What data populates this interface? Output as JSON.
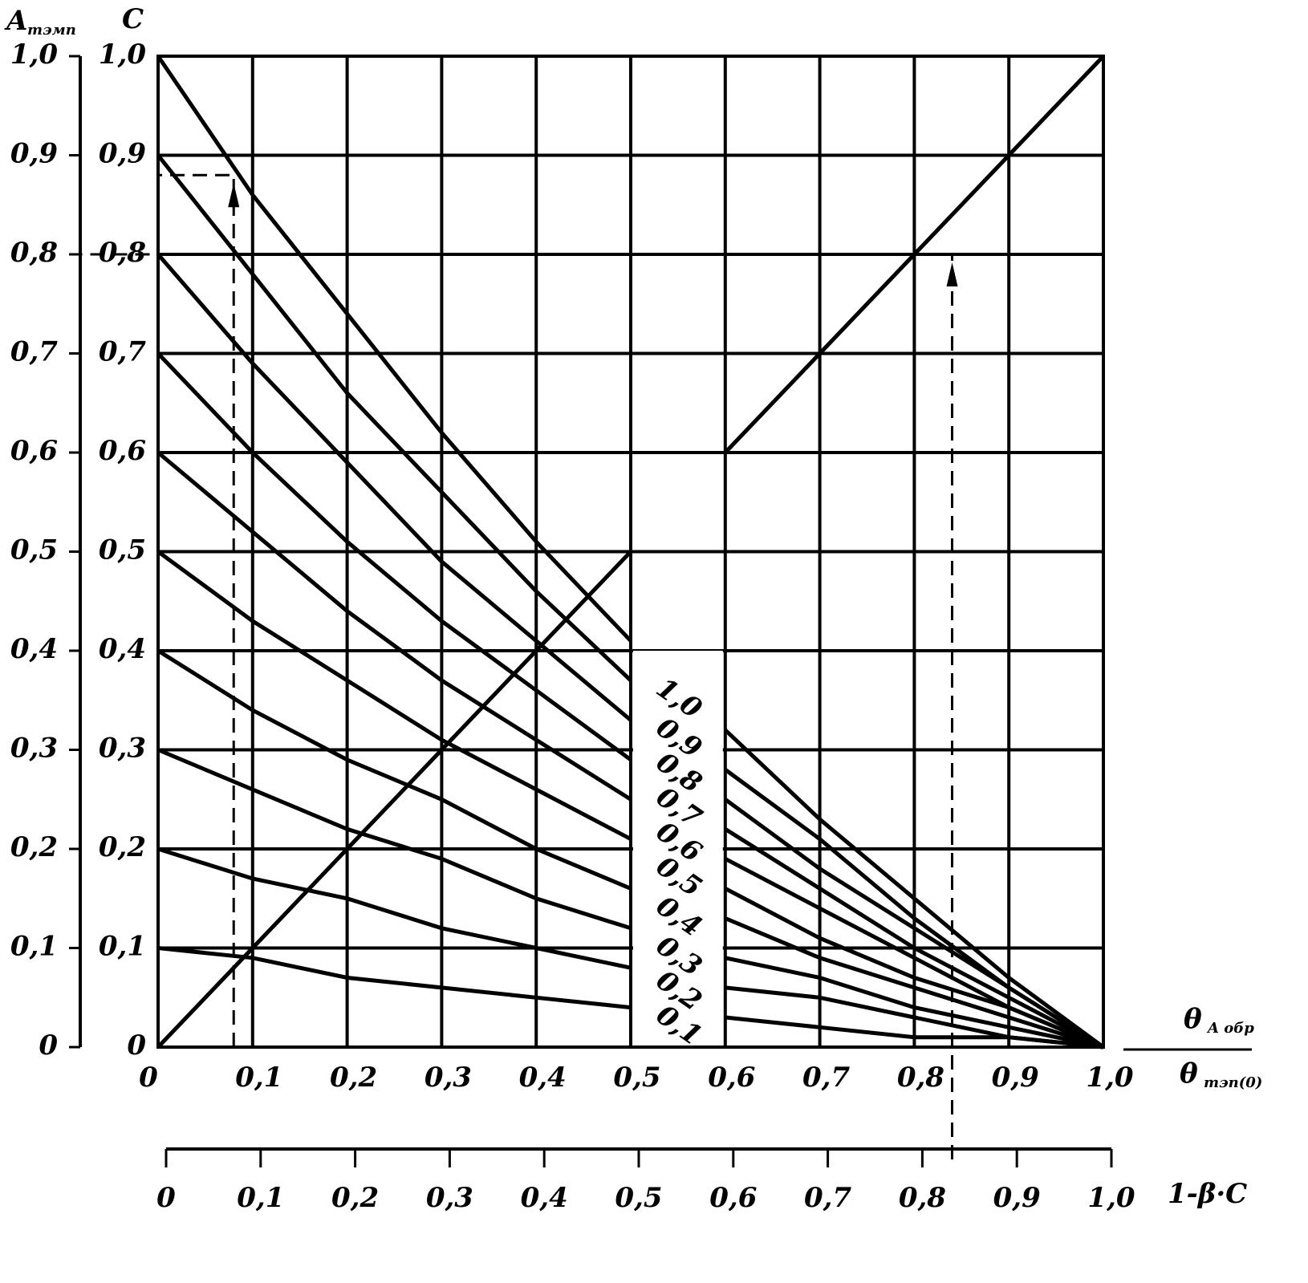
{
  "chart_data": {
    "type": "line",
    "y_label": "A",
    "y_label_sub": "тэмп",
    "y2_label": "C",
    "x_label_top": "θ",
    "x_label_top_sub": "A обр",
    "x_label_bottom": "θ",
    "x_label_bottom_sub": "тэп(0)",
    "x2_label": "1-β·C",
    "xlim": [
      0,
      1
    ],
    "ylim": [
      0,
      1
    ],
    "xticks": [
      0,
      {
        "value": 0.1,
        "label": "0,1"
      },
      {
        "value": 0.2,
        "label": "0,2"
      },
      {
        "value": 0.3,
        "label": "0,3"
      },
      {
        "value": 0.4,
        "label": "0,4"
      },
      {
        "value": 0.5,
        "label": "0,5"
      },
      {
        "value": 0.6,
        "label": "0,6"
      },
      {
        "value": 0.7,
        "label": "0,7"
      },
      {
        "value": 0.8,
        "label": "0,8"
      },
      {
        "value": 0.9,
        "label": "0,9"
      },
      {
        "value": 1,
        "label": "1,0"
      }
    ],
    "yticks": [
      0,
      {
        "value": 0.1,
        "label": "0,1"
      },
      {
        "value": 0.2,
        "label": "0,2"
      },
      {
        "value": 0.3,
        "label": "0,3"
      },
      {
        "value": 0.4,
        "label": "0,4"
      },
      {
        "value": 0.5,
        "label": "0,5"
      },
      {
        "value": 0.6,
        "label": "0,6"
      },
      {
        "value": 0.7,
        "label": "0,7"
      },
      {
        "value": 0.8,
        "label": "0,8"
      },
      {
        "value": 0.9,
        "label": "0,9"
      },
      {
        "value": 1,
        "label": "1,0"
      }
    ],
    "grid": true,
    "x": [
      0,
      0.1,
      0.2,
      0.3,
      0.4,
      0.5,
      0.55,
      0.6,
      0.7,
      0.8,
      0.9,
      1.0
    ],
    "series": [
      {
        "name": "1,0",
        "color": "#000000",
        "values": [
          1,
          0.86,
          0.74,
          0.62,
          0.51,
          0.41,
          null,
          0.32,
          0.23,
          0.15,
          0.07,
          0
        ]
      },
      {
        "name": "0,9",
        "color": "#000000",
        "values": [
          0.9,
          0.78,
          0.66,
          0.56,
          0.46,
          0.37,
          null,
          0.28,
          0.21,
          0.13,
          0.06,
          0
        ]
      },
      {
        "name": "0,8",
        "color": "#000000",
        "values": [
          0.8,
          0.69,
          0.59,
          0.49,
          0.41,
          0.33,
          null,
          0.25,
          0.18,
          0.12,
          0.06,
          0
        ]
      },
      {
        "name": "0,7",
        "color": "#000000",
        "values": [
          0.7,
          0.6,
          0.51,
          0.43,
          0.36,
          0.29,
          null,
          0.22,
          0.16,
          0.1,
          0.05,
          0
        ]
      },
      {
        "name": "0,6",
        "color": "#000000",
        "values": [
          0.6,
          0.52,
          0.44,
          0.37,
          0.31,
          0.25,
          null,
          0.19,
          0.14,
          0.09,
          0.04,
          0
        ]
      },
      {
        "name": "0,5",
        "color": "#000000",
        "values": [
          0.5,
          0.43,
          0.37,
          0.31,
          0.26,
          0.21,
          null,
          0.16,
          0.11,
          0.07,
          0.04,
          0
        ]
      },
      {
        "name": "0,4",
        "color": "#000000",
        "values": [
          0.4,
          0.34,
          0.29,
          0.25,
          0.2,
          0.16,
          null,
          0.13,
          0.09,
          0.06,
          0.03,
          0
        ]
      },
      {
        "name": "0,3",
        "color": "#000000",
        "values": [
          0.3,
          0.26,
          0.22,
          0.19,
          0.15,
          0.12,
          null,
          0.09,
          0.07,
          0.04,
          0.02,
          0
        ]
      },
      {
        "name": "0,2",
        "color": "#000000",
        "values": [
          0.2,
          0.17,
          0.15,
          0.12,
          0.1,
          0.08,
          null,
          0.06,
          0.05,
          0.03,
          0.01,
          0
        ]
      },
      {
        "name": "0,1",
        "color": "#000000",
        "values": [
          0.1,
          0.09,
          0.07,
          0.06,
          0.05,
          0.04,
          null,
          0.03,
          0.02,
          0.01,
          0.01,
          0
        ]
      },
      {
        "color": "#000000",
        "values": [
          0,
          0.1,
          0.2,
          0.3,
          0.4,
          0.5,
          null,
          0.6,
          0.7,
          0.8,
          0.9,
          1.0
        ]
      }
    ],
    "guides": [
      {
        "x": 0.08,
        "y": 0.88
      },
      {
        "x": 0.84,
        "y": 0.8
      }
    ]
  }
}
